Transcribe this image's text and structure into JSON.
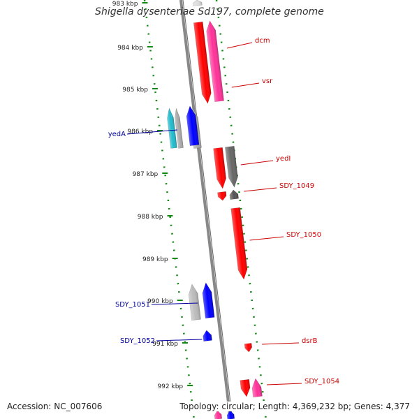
{
  "title": "Shigella dysenteriae Sd197, complete genome",
  "footer": {
    "accession": "Accession: NC_007606",
    "topology": "Topology: circular; Length: 4,369,232 bp; Genes: 4,377"
  },
  "colors": {
    "forward_gene": "#ff0000",
    "forward_other": "#ff3399",
    "reverse_gene": "#0000ff",
    "reverse_other": "#22bbcc",
    "pseudo": "#555555",
    "backbone": "#888888",
    "tick": "#118811",
    "forward_label": "#cc0000",
    "reverse_label": "#000099"
  },
  "ticks": [
    "983 kbp",
    "984 kbp",
    "985 kbp",
    "986 kbp",
    "987 kbp",
    "988 kbp",
    "989 kbp",
    "990 kbp",
    "991 kbp",
    "992 kbp"
  ],
  "forward_labels": [
    "dcm",
    "vsr",
    "yedI",
    "SDY_1049",
    "SDY_1050",
    "dsrB",
    "SDY_1054"
  ],
  "reverse_labels": [
    "yedA",
    "SDY_1051",
    "SDY_1052"
  ]
}
